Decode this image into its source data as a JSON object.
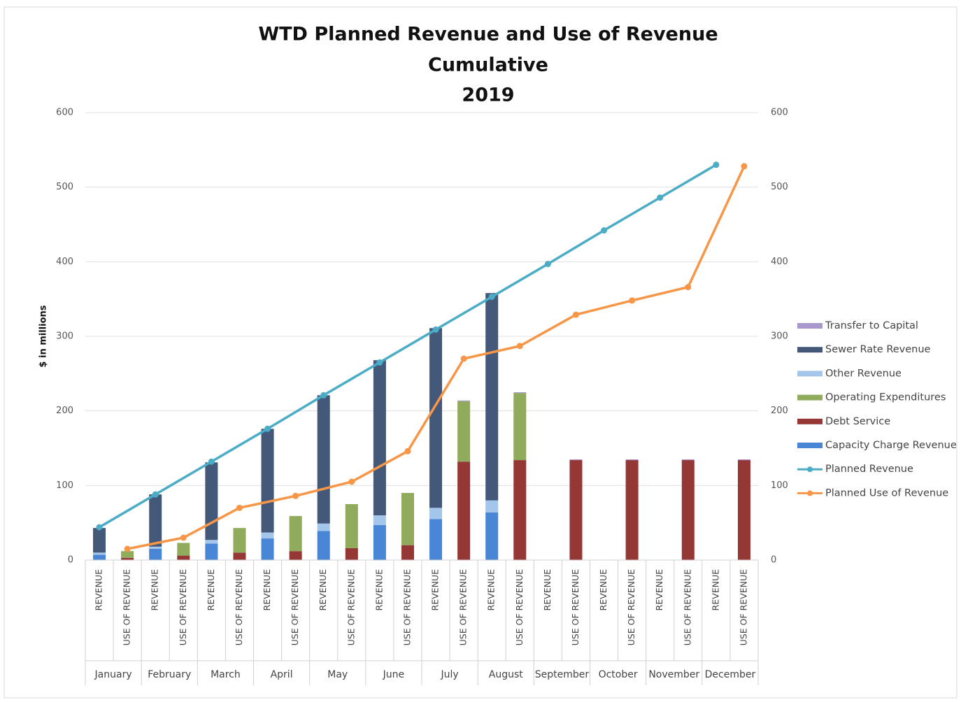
{
  "chart_data": {
    "type": "stacked-bar-line",
    "title": [
      "WTD Planned Revenue and Use of Revenue",
      "Cumulative",
      "2019"
    ],
    "y_label": "$ in millions",
    "groups": [
      "January",
      "February",
      "March",
      "April",
      "May",
      "June",
      "July",
      "August",
      "September",
      "October",
      "November",
      "December"
    ],
    "categories": [
      "REVENUE",
      "USE OF REVENUE",
      "REVENUE",
      "USE OF REVENUE",
      "REVENUE",
      "USE OF REVENUE",
      "REVENUE",
      "USE OF REVENUE",
      "REVENUE",
      "USE OF REVENUE",
      "REVENUE",
      "USE OF REVENUE",
      "REVENUE",
      "USE OF REVENUE",
      "REVENUE",
      "USE OF REVENUE",
      "REVENUE",
      "USE OF REVENUE",
      "REVENUE",
      "USE OF REVENUE",
      "REVENUE",
      "USE OF REVENUE",
      "REVENUE",
      "USE OF REVENUE"
    ],
    "series": [
      {
        "name": "Capacity Charge Revenue",
        "color": "#4a86d6",
        "values": [
          7,
          null,
          15,
          null,
          22,
          null,
          29,
          null,
          39,
          null,
          47,
          null,
          55,
          null,
          64,
          null,
          null,
          null,
          null,
          null,
          null,
          null,
          null,
          null
        ]
      },
      {
        "name": "Debt Service",
        "color": "#953735",
        "values": [
          null,
          3,
          null,
          6,
          null,
          10,
          null,
          12,
          null,
          16,
          null,
          20,
          null,
          132,
          null,
          134,
          null,
          134,
          null,
          134,
          null,
          134,
          null,
          134
        ]
      },
      {
        "name": "Operating Expenditures",
        "color": "#8fab5b",
        "values": [
          null,
          9,
          null,
          17,
          null,
          33,
          null,
          47,
          null,
          59,
          null,
          70,
          null,
          81,
          null,
          90,
          null,
          null,
          null,
          null,
          null,
          null,
          null,
          null
        ]
      },
      {
        "name": "Other Revenue",
        "color": "#a4c6ea",
        "values": [
          3,
          null,
          3,
          null,
          5,
          null,
          8,
          null,
          10,
          null,
          13,
          null,
          15,
          null,
          16,
          null,
          null,
          null,
          null,
          null,
          null,
          null,
          null,
          null
        ]
      },
      {
        "name": "Sewer Rate Revenue",
        "color": "#44587a",
        "values": [
          33,
          null,
          70,
          null,
          104,
          null,
          139,
          null,
          172,
          null,
          208,
          null,
          241,
          null,
          278,
          null,
          null,
          null,
          null,
          null,
          null,
          null,
          null,
          null
        ]
      },
      {
        "name": "Transfer to Capital",
        "color": "#a998cc",
        "values": [
          null,
          null,
          null,
          null,
          null,
          null,
          null,
          null,
          null,
          null,
          null,
          null,
          null,
          1,
          null,
          1,
          null,
          1,
          null,
          1,
          null,
          1,
          null,
          1
        ]
      }
    ],
    "lines": [
      {
        "name": "Planned Revenue",
        "color": "#4bacc6",
        "values": [
          44,
          88,
          132,
          176,
          221,
          265,
          309,
          353,
          397,
          442,
          486,
          530
        ]
      },
      {
        "name": "Planned Use of Revenue",
        "color": "#f79646",
        "values": [
          15,
          30,
          70,
          86,
          105,
          146,
          270,
          287,
          329,
          348,
          366,
          528
        ]
      }
    ],
    "ylim": [
      0,
      600
    ],
    "yticks": [
      0,
      100,
      200,
      300,
      400,
      500,
      600
    ],
    "y2lim": [
      0,
      600
    ],
    "y2ticks": [
      0,
      100,
      200,
      300,
      400,
      500,
      600
    ],
    "grid": true,
    "legend": "right"
  }
}
